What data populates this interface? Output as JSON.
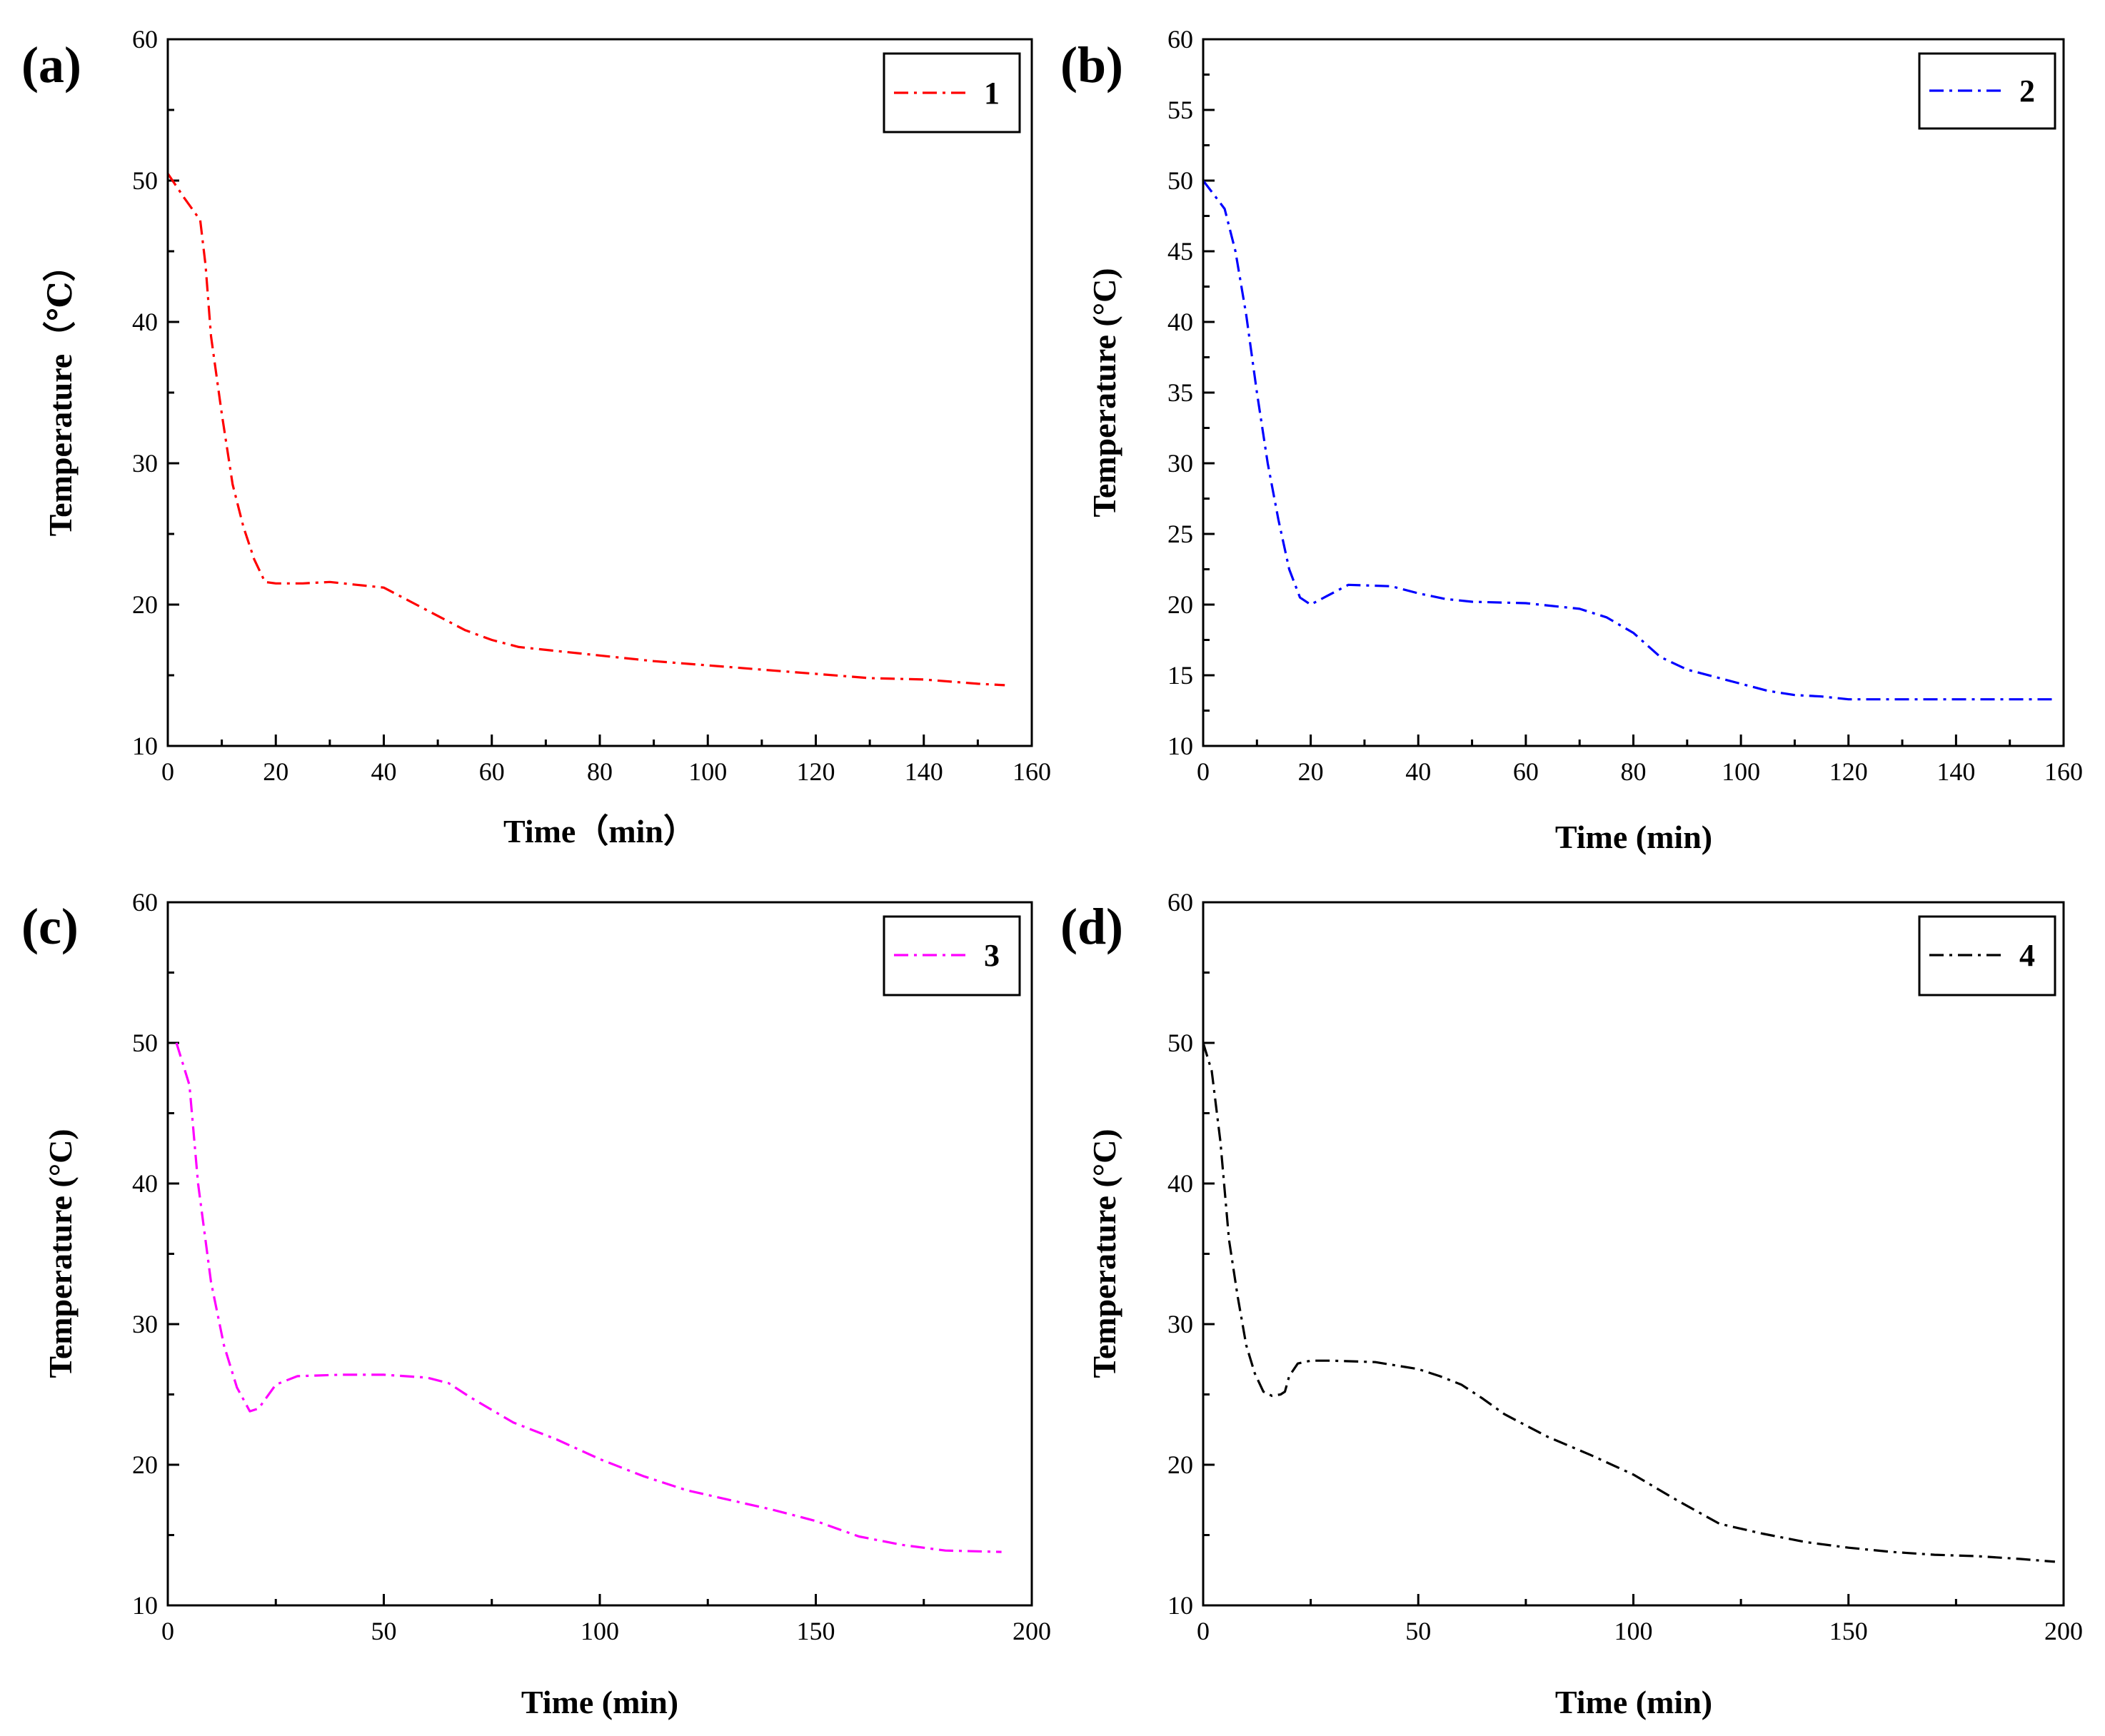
{
  "chart_data": [
    {
      "type": "line",
      "panel_label": "(a)",
      "xlabel": "Time（min）",
      "ylabel": "Temperature（℃）",
      "xlim": [
        0,
        160
      ],
      "ylim": [
        10,
        60
      ],
      "xticks": [
        0,
        20,
        40,
        60,
        80,
        100,
        120,
        140,
        160
      ],
      "yticks": [
        10,
        20,
        30,
        40,
        50,
        60
      ],
      "legend": "top-right",
      "series": [
        {
          "name": "1",
          "color": "#ff0000",
          "x": [
            0,
            3,
            6,
            7,
            8,
            10,
            12,
            14,
            16,
            18,
            20,
            25,
            30,
            35,
            40,
            45,
            50,
            55,
            60,
            65,
            70,
            80,
            90,
            100,
            110,
            120,
            130,
            140,
            150,
            155
          ],
          "y": [
            50.5,
            48.8,
            47.2,
            44,
            39,
            33.5,
            28.5,
            25.5,
            23.2,
            21.6,
            21.5,
            21.5,
            21.6,
            21.4,
            21.2,
            20.2,
            19.2,
            18.2,
            17.5,
            17.0,
            16.8,
            16.4,
            16.0,
            15.7,
            15.4,
            15.1,
            14.8,
            14.7,
            14.4,
            14.3
          ]
        }
      ]
    },
    {
      "type": "line",
      "panel_label": "(b)",
      "xlabel": "Time (min)",
      "ylabel": "Temperature (°C)",
      "xlim": [
        0,
        160
      ],
      "ylim": [
        10,
        60
      ],
      "xticks": [
        0,
        20,
        40,
        60,
        80,
        100,
        120,
        140,
        160
      ],
      "yticks": [
        10,
        15,
        20,
        25,
        30,
        35,
        40,
        45,
        50,
        55,
        60
      ],
      "legend": "top-right",
      "series": [
        {
          "name": "2",
          "color": "#0000ff",
          "x": [
            0,
            2,
            4,
            6,
            8,
            10,
            12,
            14,
            16,
            18,
            20,
            23,
            27,
            35,
            40,
            45,
            50,
            60,
            70,
            75,
            80,
            85,
            90,
            95,
            100,
            105,
            110,
            115,
            120,
            140,
            158
          ],
          "y": [
            50,
            49,
            48,
            45,
            40.5,
            35,
            30,
            26,
            22.5,
            20.5,
            20.0,
            20.6,
            21.4,
            21.3,
            20.8,
            20.4,
            20.2,
            20.1,
            19.7,
            19.1,
            18.0,
            16.3,
            15.4,
            14.9,
            14.4,
            13.9,
            13.6,
            13.5,
            13.3,
            13.3,
            13.3
          ]
        }
      ]
    },
    {
      "type": "line",
      "panel_label": "(c)",
      "xlabel": "Time (min)",
      "ylabel": "Temperature (°C)",
      "xlim": [
        0,
        200
      ],
      "ylim": [
        10,
        60
      ],
      "xticks": [
        0,
        50,
        100,
        150,
        200
      ],
      "yticks": [
        10,
        20,
        30,
        40,
        50,
        60
      ],
      "legend": "top-right",
      "series": [
        {
          "name": "3",
          "color": "#ff00ff",
          "x": [
            2,
            5,
            7,
            10,
            13,
            16,
            19,
            21,
            25,
            30,
            40,
            50,
            60,
            65,
            70,
            80,
            90,
            100,
            110,
            120,
            130,
            140,
            150,
            160,
            170,
            180,
            193
          ],
          "y": [
            50,
            47,
            40,
            33,
            28.5,
            25.5,
            23.8,
            24,
            25.7,
            26.3,
            26.4,
            26.4,
            26.2,
            25.8,
            24.8,
            23.0,
            21.8,
            20.4,
            19.2,
            18.2,
            17.5,
            16.8,
            16.0,
            14.9,
            14.3,
            13.9,
            13.8
          ]
        }
      ]
    },
    {
      "type": "line",
      "panel_label": "(d)",
      "xlabel": "Time (min)",
      "ylabel": "Temperature (°C)",
      "xlim": [
        0,
        200
      ],
      "ylim": [
        10,
        60
      ],
      "xticks": [
        0,
        50,
        100,
        150,
        200
      ],
      "yticks": [
        10,
        20,
        30,
        40,
        50,
        60
      ],
      "legend": "top-right",
      "series": [
        {
          "name": "4",
          "color": "#000000",
          "x": [
            0,
            2,
            4,
            6,
            8,
            10,
            12,
            14,
            16,
            18,
            19,
            20,
            22,
            25,
            30,
            40,
            50,
            55,
            60,
            65,
            70,
            80,
            90,
            100,
            110,
            120,
            130,
            140,
            150,
            160,
            170,
            180,
            190,
            198
          ],
          "y": [
            50,
            48,
            43,
            36,
            32,
            28.5,
            26.5,
            25.2,
            24.9,
            25,
            25.2,
            26.3,
            27.2,
            27.4,
            27.4,
            27.3,
            26.8,
            26.3,
            25.7,
            24.7,
            23.6,
            22.0,
            20.7,
            19.3,
            17.5,
            15.8,
            15.1,
            14.5,
            14.1,
            13.8,
            13.6,
            13.5,
            13.3,
            13.1
          ]
        }
      ]
    }
  ]
}
